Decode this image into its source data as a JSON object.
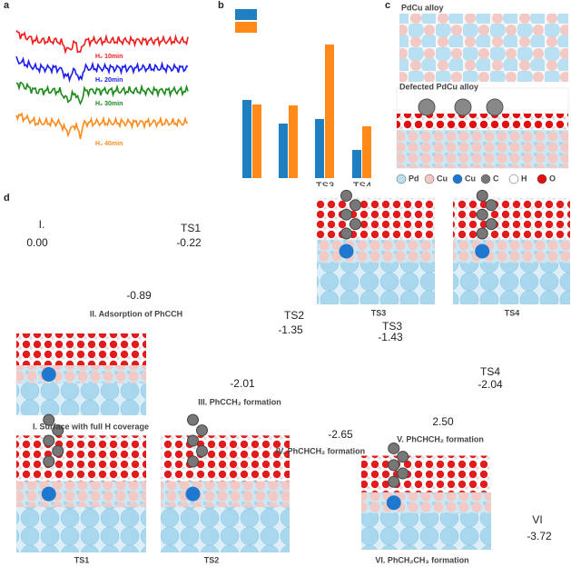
{
  "panel_labels": [
    "a",
    "b",
    "c",
    "d"
  ],
  "spectra": [
    {
      "name": "H₂ 10min",
      "color": "#f01c1c"
    },
    {
      "name": "H₂ 20min",
      "color": "#1b1bf0"
    },
    {
      "name": "H₂ 30min",
      "color": "#1a8a1a"
    },
    {
      "name": "H₂ 40min",
      "color": "#ff8a1a"
    }
  ],
  "chart_data": {
    "type": "bar",
    "categories": [
      null,
      null,
      "TS3",
      "TS4"
    ],
    "series": [
      {
        "color": "#1f7fc0",
        "values": [
          86,
          60,
          65,
          31
        ]
      },
      {
        "color": "#ff8a1a",
        "values": [
          81,
          80,
          147,
          57
        ]
      }
    ]
  },
  "structure_titles": [
    "PdCu alloy",
    "Defected PdCu alloy"
  ],
  "atom_legend": [
    {
      "name": "Pd",
      "color": "#b9e0f2"
    },
    {
      "name": "Cu",
      "color": "#f2c9c4"
    },
    {
      "name": "Cu",
      "color": "#1e78d0"
    },
    {
      "name": "C",
      "color": "#777777"
    },
    {
      "name": "H",
      "color": "#ffffff"
    },
    {
      "name": "O",
      "color": "#e01010"
    }
  ],
  "profile_labels": [
    "I.",
    "0.00",
    "TS1",
    "-0.22",
    "-0.89",
    "II. Adsorption of PhCCH",
    "TS2",
    "-1.35",
    "TS3",
    "-1.43",
    "-2.01",
    "III. PhCCH₂ formation",
    "TS4",
    "-2.04",
    "I. Surface with full H coverage",
    "-2.65",
    "IV. PhCHCH₂ formation",
    "2.50",
    "V. PhCHCH₂ formation",
    "VI",
    "-3.72",
    "VI. PhCH₂CH₃ formation"
  ],
  "image_captions": [
    "TS3",
    "TS4",
    "TS1",
    "TS2"
  ]
}
